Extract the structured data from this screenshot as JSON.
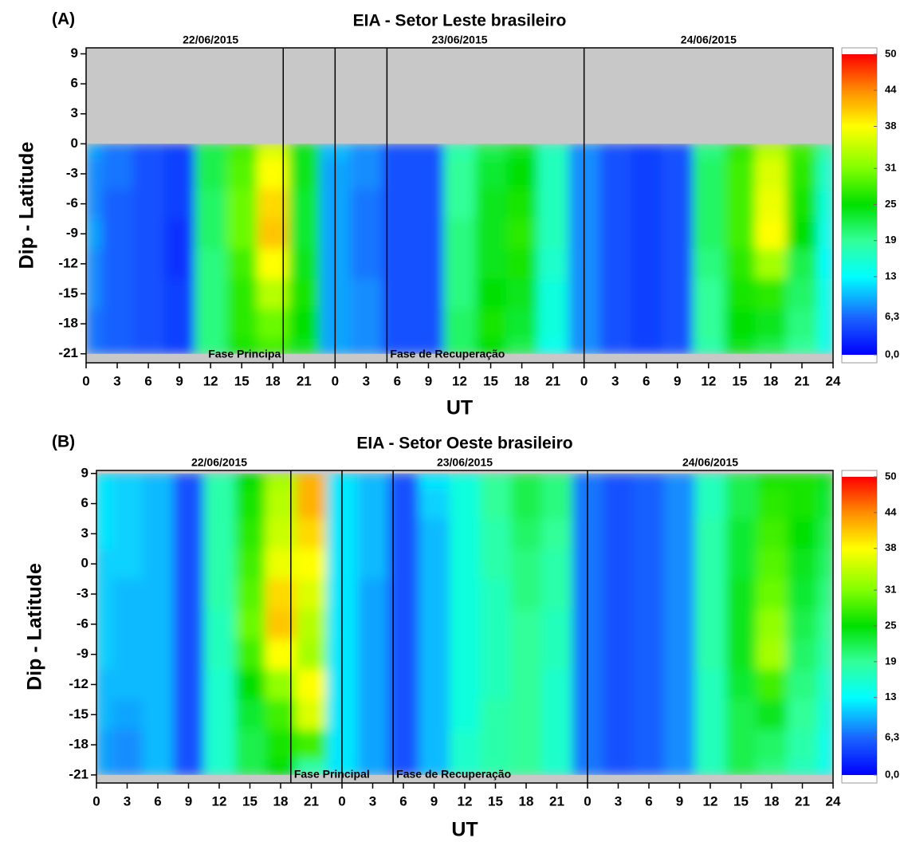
{
  "chart_data": [
    {
      "type": "heatmap",
      "panel_label": "(A)",
      "title": "EIA - Setor Leste brasileiro",
      "xlabel": "UT",
      "ylabel": "Dip - Latitude",
      "day_labels": [
        "22/06/2015",
        "23/06/2015",
        "24/06/2015"
      ],
      "separators": [
        24,
        48
      ],
      "phase_lines": [
        19,
        29
      ],
      "annotations": [
        {
          "text": "Fase Principa",
          "x": 19,
          "align": "end"
        },
        {
          "text": "Fase de Recuperação",
          "x": 29,
          "align": "start"
        }
      ],
      "x": [
        0,
        3,
        6,
        9,
        12,
        15,
        18,
        21,
        24,
        27,
        30,
        33,
        36,
        39,
        42,
        45,
        48,
        51,
        54,
        57,
        60,
        63,
        66,
        69,
        72
      ],
      "y": [
        0,
        -3,
        -6,
        -9,
        -12,
        -15,
        -18,
        -21
      ],
      "z": [
        [
          9,
          7,
          5,
          4,
          22,
          28,
          36,
          24,
          10,
          8,
          5,
          5,
          18,
          22,
          24,
          17,
          8,
          5,
          4,
          5,
          20,
          27,
          34,
          28,
          18
        ],
        [
          8,
          7,
          5,
          4,
          22,
          29,
          38,
          24,
          9,
          8,
          5,
          5,
          19,
          23,
          25,
          17,
          8,
          5,
          4,
          5,
          21,
          28,
          36,
          27,
          16
        ],
        [
          8,
          6,
          5,
          4,
          21,
          30,
          40,
          23,
          9,
          7,
          5,
          5,
          19,
          24,
          26,
          17,
          8,
          5,
          4,
          5,
          21,
          28,
          37,
          26,
          15
        ],
        [
          9,
          6,
          5,
          3,
          21,
          30,
          41,
          23,
          9,
          7,
          5,
          5,
          20,
          24,
          27,
          17,
          8,
          5,
          4,
          5,
          21,
          28,
          38,
          25,
          14
        ],
        [
          8,
          6,
          5,
          3,
          20,
          28,
          38,
          24,
          9,
          7,
          5,
          5,
          20,
          24,
          26,
          16,
          8,
          5,
          4,
          5,
          20,
          27,
          33,
          22,
          13
        ],
        [
          8,
          6,
          5,
          4,
          20,
          27,
          34,
          26,
          9,
          8,
          5,
          5,
          20,
          25,
          24,
          15,
          8,
          5,
          4,
          5,
          19,
          26,
          27,
          21,
          14
        ],
        [
          7,
          6,
          5,
          4,
          20,
          27,
          30,
          25,
          9,
          8,
          5,
          5,
          21,
          26,
          23,
          15,
          8,
          5,
          4,
          5,
          19,
          25,
          24,
          20,
          14
        ],
        [
          7,
          6,
          5,
          4,
          20,
          26,
          28,
          24,
          9,
          8,
          5,
          5,
          21,
          25,
          22,
          14,
          8,
          5,
          4,
          5,
          18,
          24,
          22,
          19,
          14
        ]
      ],
      "xlim": [
        0,
        72
      ],
      "ylim": [
        -21.9,
        9.6
      ],
      "xticks": [
        0,
        3,
        6,
        9,
        12,
        15,
        18,
        21,
        {
          "value": 24,
          "label": "0"
        },
        {
          "value": 27,
          "label": "3"
        },
        {
          "value": 30,
          "label": "6"
        },
        {
          "value": 33,
          "label": "9"
        },
        {
          "value": 36,
          "label": "12"
        },
        {
          "value": 39,
          "label": "15"
        },
        {
          "value": 42,
          "label": "18"
        },
        {
          "value": 45,
          "label": "21"
        },
        {
          "value": 48,
          "label": "0"
        },
        {
          "value": 51,
          "label": "3"
        },
        {
          "value": 54,
          "label": "6"
        },
        {
          "value": 57,
          "label": "9"
        },
        {
          "value": 60,
          "label": "12"
        },
        {
          "value": 63,
          "label": "15"
        },
        {
          "value": 66,
          "label": "18"
        },
        {
          "value": 69,
          "label": "21"
        },
        {
          "value": 72,
          "label": "24"
        }
      ],
      "yticks": [
        9,
        6,
        3,
        0,
        -3,
        -6,
        -9,
        -12,
        -15,
        -18,
        -21
      ],
      "zlim": [
        0,
        50
      ],
      "zticks": [
        {
          "value": 0,
          "label": "0,0"
        },
        {
          "value": 6.3,
          "label": "6,3"
        },
        13,
        19,
        25,
        31,
        38,
        44,
        50
      ],
      "colors": [
        "#0000ff",
        "#1a66ff",
        "#00ffff",
        "#33ff99",
        "#00e000",
        "#80ff00",
        "#ffff00",
        "#ff8c00",
        "#ff0000"
      ]
    },
    {
      "type": "heatmap",
      "panel_label": "(B)",
      "title": "EIA - Setor Oeste brasileiro",
      "xlabel": "UT",
      "ylabel": "Dip - Latitude",
      "day_labels": [
        "22/06/2015",
        "23/06/2015",
        "24/06/2015"
      ],
      "separators": [
        24,
        48
      ],
      "phase_lines": [
        19,
        29
      ],
      "annotations": [
        {
          "text": "Fase Principal",
          "x": 19,
          "align": "start"
        },
        {
          "text": "Fase de Recuperação",
          "x": 29,
          "align": "start"
        }
      ],
      "x": [
        0,
        3,
        6,
        9,
        12,
        15,
        18,
        21,
        24,
        27,
        30,
        33,
        36,
        39,
        42,
        45,
        48,
        51,
        54,
        57,
        60,
        63,
        66,
        69,
        72
      ],
      "y": [
        9,
        6,
        3,
        0,
        -3,
        -6,
        -9,
        -12,
        -15,
        -18,
        -21
      ],
      "z": [
        [
          12,
          11,
          10,
          5,
          18,
          25,
          33,
          42,
          12,
          10,
          5,
          12,
          15,
          19,
          22,
          20,
          7,
          5,
          6,
          8,
          17,
          22,
          26,
          26,
          24
        ],
        [
          12,
          11,
          10,
          5,
          18,
          26,
          34,
          42,
          12,
          10,
          5,
          11,
          15,
          19,
          22,
          20,
          7,
          5,
          6,
          8,
          17,
          22,
          27,
          26,
          23
        ],
        [
          12,
          11,
          10,
          5,
          18,
          27,
          35,
          40,
          12,
          10,
          5,
          10,
          15,
          18,
          21,
          19,
          7,
          5,
          6,
          8,
          18,
          23,
          28,
          25,
          22
        ],
        [
          11,
          11,
          10,
          5,
          18,
          28,
          37,
          38,
          12,
          10,
          5,
          10,
          15,
          18,
          20,
          18,
          7,
          5,
          6,
          8,
          18,
          23,
          29,
          24,
          21
        ],
        [
          11,
          10,
          10,
          5,
          18,
          29,
          40,
          36,
          12,
          9,
          5,
          10,
          15,
          17,
          20,
          18,
          7,
          5,
          6,
          8,
          18,
          24,
          30,
          23,
          20
        ],
        [
          11,
          10,
          10,
          5,
          17,
          30,
          41,
          34,
          12,
          9,
          5,
          10,
          15,
          17,
          19,
          17,
          7,
          5,
          6,
          8,
          18,
          24,
          32,
          22,
          19
        ],
        [
          11,
          10,
          10,
          5,
          17,
          28,
          38,
          33,
          12,
          9,
          5,
          10,
          15,
          17,
          19,
          17,
          7,
          5,
          6,
          8,
          18,
          24,
          33,
          21,
          18
        ],
        [
          10,
          10,
          10,
          5,
          16,
          25,
          32,
          38,
          12,
          9,
          5,
          10,
          15,
          17,
          19,
          16,
          7,
          5,
          6,
          8,
          17,
          23,
          28,
          20,
          16
        ],
        [
          10,
          9,
          10,
          5,
          16,
          23,
          28,
          36,
          12,
          9,
          5,
          10,
          15,
          18,
          19,
          16,
          7,
          5,
          6,
          8,
          17,
          22,
          24,
          19,
          15
        ],
        [
          9,
          8,
          10,
          5,
          16,
          22,
          26,
          28,
          12,
          9,
          5,
          10,
          16,
          18,
          19,
          16,
          7,
          5,
          6,
          8,
          17,
          22,
          21,
          18,
          14
        ],
        [
          9,
          8,
          10,
          5,
          16,
          22,
          25,
          18,
          12,
          9,
          5,
          10,
          16,
          18,
          19,
          16,
          7,
          5,
          6,
          8,
          17,
          22,
          20,
          17,
          14
        ]
      ],
      "xlim": [
        0,
        72
      ],
      "ylim": [
        -21.8,
        9.3
      ],
      "xticks": [
        0,
        3,
        6,
        9,
        12,
        15,
        18,
        21,
        {
          "value": 24,
          "label": "0"
        },
        {
          "value": 27,
          "label": "3"
        },
        {
          "value": 30,
          "label": "6"
        },
        {
          "value": 33,
          "label": "9"
        },
        {
          "value": 36,
          "label": "12"
        },
        {
          "value": 39,
          "label": "15"
        },
        {
          "value": 42,
          "label": "18"
        },
        {
          "value": 45,
          "label": "21"
        },
        {
          "value": 48,
          "label": "0"
        },
        {
          "value": 51,
          "label": "3"
        },
        {
          "value": 54,
          "label": "6"
        },
        {
          "value": 57,
          "label": "9"
        },
        {
          "value": 60,
          "label": "12"
        },
        {
          "value": 63,
          "label": "15"
        },
        {
          "value": 66,
          "label": "18"
        },
        {
          "value": 69,
          "label": "21"
        },
        {
          "value": 72,
          "label": "24"
        }
      ],
      "yticks": [
        9,
        6,
        3,
        0,
        -3,
        -6,
        -9,
        -12,
        -15,
        -18,
        -21
      ],
      "zlim": [
        0,
        50
      ],
      "zticks": [
        {
          "value": 0,
          "label": "0,0"
        },
        {
          "value": 6.3,
          "label": "6,3"
        },
        13,
        19,
        25,
        31,
        38,
        44,
        50
      ],
      "colors": [
        "#0000ff",
        "#1a66ff",
        "#00ffff",
        "#33ff99",
        "#00e000",
        "#80ff00",
        "#ffff00",
        "#ff8c00",
        "#ff0000"
      ]
    }
  ]
}
